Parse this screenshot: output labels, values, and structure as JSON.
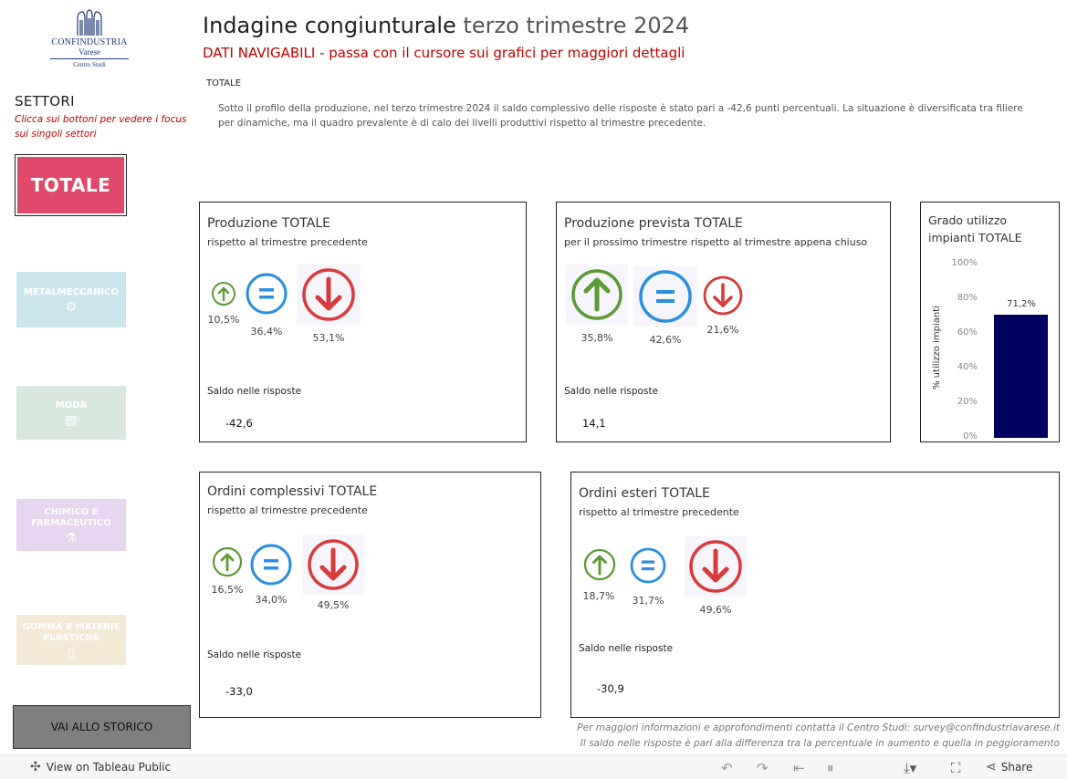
{
  "logo": {
    "line1": "CONFINDUSTRIA",
    "line2": "Varese",
    "line3": "Centro Studi"
  },
  "header": {
    "title_bold": "Indagine congiunturale",
    "title_light": "terzo trimestre 2024",
    "subtitle": "DATI NAVIGABILI - passa con il cursore sui grafici per maggiori dettagli",
    "section": "TOTALE",
    "intro": "Sotto il profilo della produzione, nel terzo trimestre 2024 il saldo complessivo delle risposte è stato pari a -42,6 punti percentuali. La situazione è diversificata tra filiere per dinamiche, ma il quadro prevalente è di calo dei livelli produttivi rispetto al trimestre precedente."
  },
  "sidebar": {
    "heading": "SETTORI",
    "hint": "Clicca sui bottoni per vedere i focus sui singoli settori",
    "total_button": "TOTALE",
    "sectors": [
      {
        "label": "METALMECCANICO",
        "icon": "gear-icon"
      },
      {
        "label": "MODA",
        "icon": "building-icon"
      },
      {
        "label": "CHIMICO E FARMACEUTICO",
        "icon": "flask-icon"
      },
      {
        "label": "GOMMA E MATERIE PLASTICHE",
        "icon": "bottle-icon"
      }
    ],
    "history_button": "VAI ALLO STORICO"
  },
  "panels": {
    "produzione": {
      "title": "Produzione TOTALE",
      "subtitle": "rispetto al trimestre precedente",
      "up": "10,5%",
      "eq": "36,4%",
      "down": "53,1%",
      "saldo_label": "Saldo nelle risposte",
      "saldo": "-42,6"
    },
    "prevista": {
      "title": "Produzione prevista  TOTALE",
      "subtitle": "per il prossimo trimestre rispetto al trimestre appena chiuso",
      "up": "35,8%",
      "eq": "42,6%",
      "down": "21,6%",
      "saldo_label": "Saldo nelle risposte",
      "saldo": "14,1"
    },
    "ordini": {
      "title": "Ordini complessivi TOTALE",
      "subtitle": "rispetto al trimestre precedente",
      "up": "16,5%",
      "eq": "34,0%",
      "down": "49,5%",
      "saldo_label": "Saldo nelle risposte",
      "saldo": "-33,0"
    },
    "esteri": {
      "title": "Ordini esteri TOTALE",
      "subtitle": "rispetto al trimestre precedente",
      "up": "18,7%",
      "eq": "31,7%",
      "down": "49,6%",
      "saldo_label": "Saldo nelle risposte",
      "saldo": "-30,9"
    }
  },
  "colors": {
    "up": "#5d9a35",
    "eq": "#2b8ee0",
    "down": "#d93a3a",
    "bar": "#00005e",
    "accent": "#c00000",
    "totale": "#e0496a"
  },
  "chart_data": {
    "type": "bar",
    "title": "Grado utilizzo impianti TOTALE",
    "ylabel": "% utilizzo impianti",
    "ylim": [
      0,
      100
    ],
    "yticks": [
      "0%",
      "20%",
      "40%",
      "60%",
      "80%",
      "100%"
    ],
    "categories": [
      ""
    ],
    "values": [
      71.2
    ],
    "value_label": "71,2%"
  },
  "footer": {
    "note1": "Per maggiori informazioni e approfondimenti contatta il Centro Studi: survey@confindustriavarese.it",
    "note2": "Il saldo nelle risposte è pari alla differenza tra la percentuale in aumento e quella in peggioramento"
  },
  "toolbar": {
    "view_on": "View on Tableau Public",
    "share": "Share"
  }
}
